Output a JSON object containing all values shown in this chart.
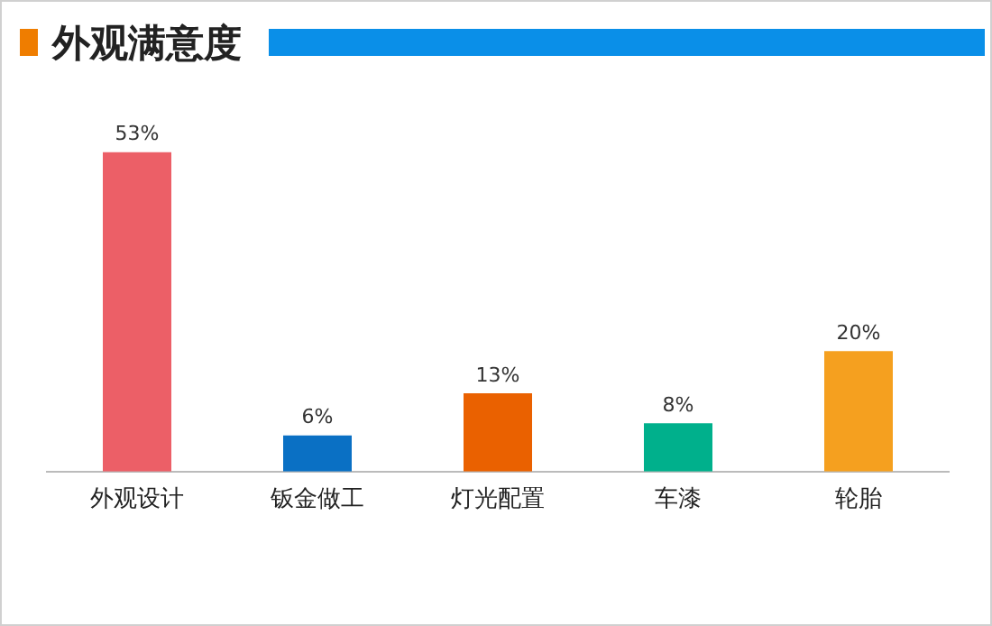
{
  "chart_data": {
    "type": "bar",
    "title": "外观满意度",
    "categories": [
      "外观设计",
      "钣金做工",
      "灯光配置",
      "车漆",
      "轮胎"
    ],
    "values": [
      53,
      6,
      13,
      8,
      20
    ],
    "colors": [
      "#ec5f67",
      "#0a70c4",
      "#ea6100",
      "#00b08c",
      "#f5a01f"
    ],
    "value_labels": [
      "53%",
      "6%",
      "13%",
      "8%",
      "20%"
    ],
    "grid": false,
    "legend": false
  }
}
